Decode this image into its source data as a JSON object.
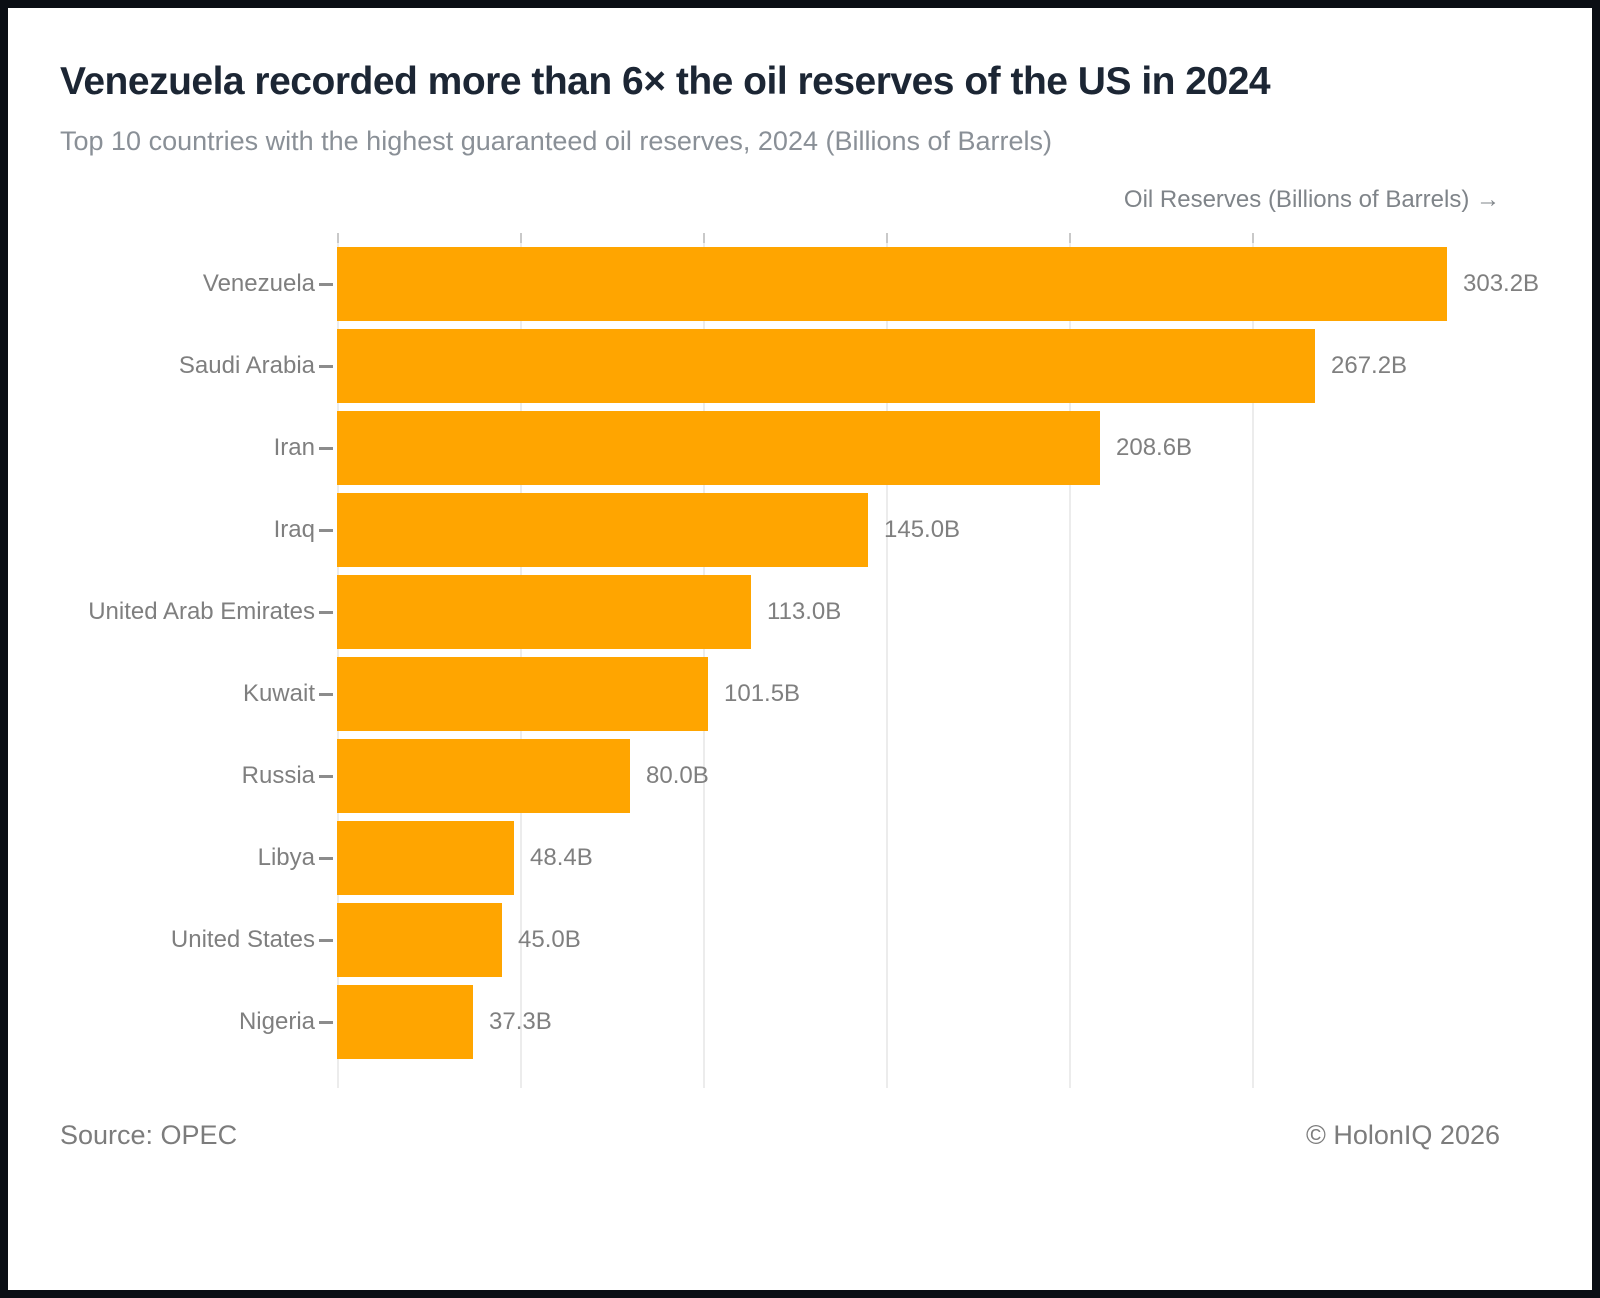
{
  "header": {
    "title": "Venezuela recorded more than 6× the oil reserves of the US in 2024",
    "subtitle": "Top 10 countries with the highest guaranteed oil reserves, 2024 (Billions of Barrels)"
  },
  "chart_data": {
    "type": "bar",
    "orientation": "horizontal",
    "title": "Venezuela recorded more than 6× the oil reserves of the US in 2024",
    "subtitle": "Top 10 countries with the highest guaranteed oil reserves, 2024 (Billions of Barrels)",
    "xlabel": "Oil Reserves (Billions of Barrels) →",
    "ylabel": "",
    "categories": [
      "Venezuela",
      "Saudi Arabia",
      "Iran",
      "Iraq",
      "United Arab Emirates",
      "Kuwait",
      "Russia",
      "Libya",
      "United States",
      "Nigeria"
    ],
    "values": [
      303.2,
      267.2,
      208.6,
      145.0,
      113.0,
      101.5,
      80.0,
      48.4,
      45.0,
      37.3
    ],
    "value_labels": [
      "303.2B",
      "267.2B",
      "208.6B",
      "145.0B",
      "113.0B",
      "101.5B",
      "80.0B",
      "48.4B",
      "45.0B",
      "37.3B"
    ],
    "xlim": [
      0,
      320
    ],
    "gridline_interval": 50,
    "grid": "vertical",
    "legend": "none",
    "bar_color": "#FFA500",
    "gridline_color": "#ececec"
  },
  "footer": {
    "source": "Source: OPEC",
    "copyright": "© HolonIQ 2026"
  }
}
